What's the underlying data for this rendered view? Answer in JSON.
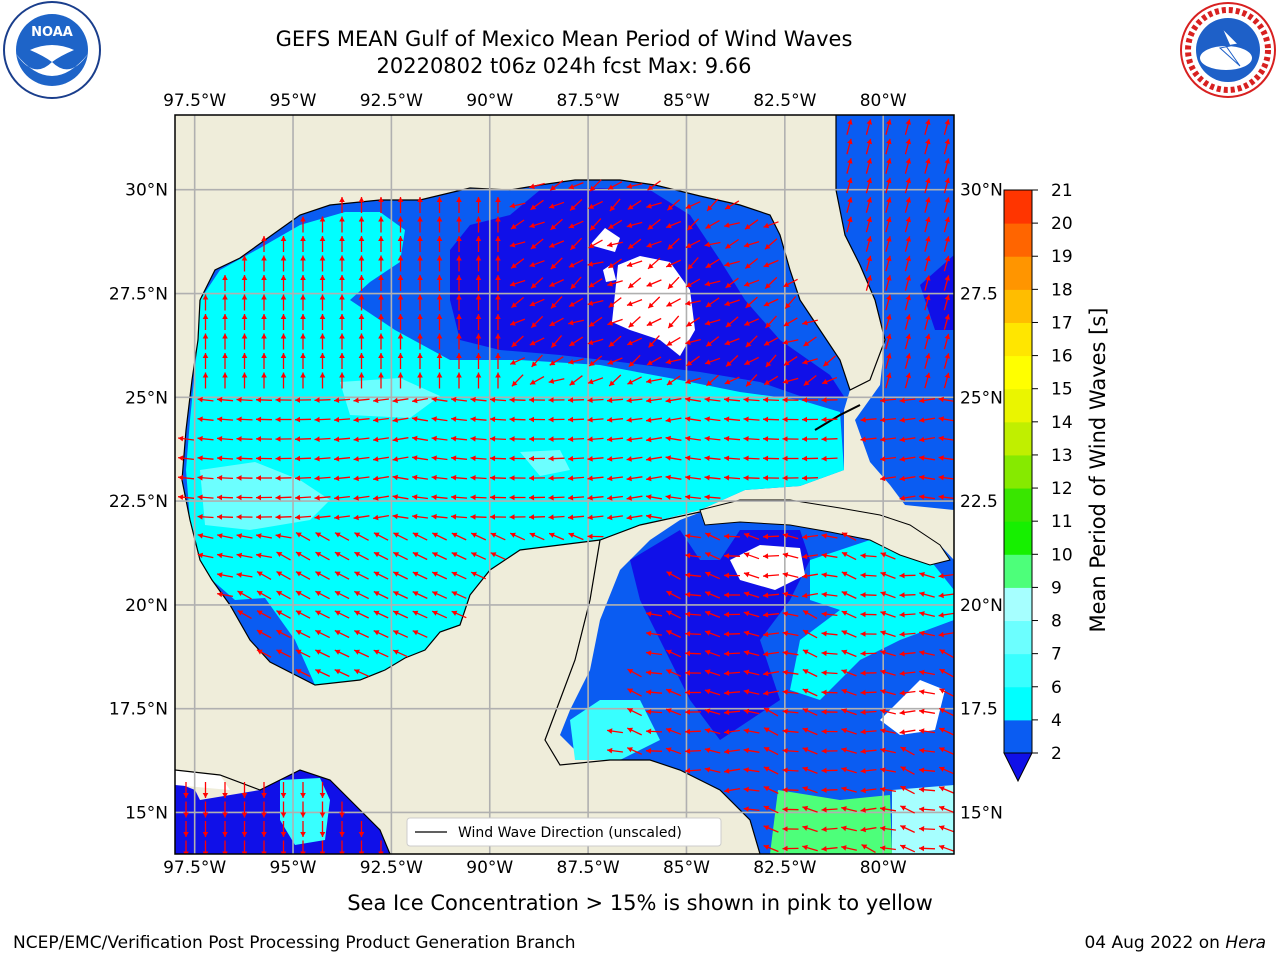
{
  "header": {
    "title_line1": "GEFS MEAN Gulf of Mexico Mean Period of Wind Waves",
    "title_line2": "20220802 t06z 024h fcst   Max: 9.66"
  },
  "logos": {
    "left": {
      "name": "noaa-logo",
      "text": "NOAA"
    },
    "right": {
      "name": "national-weather-service-logo",
      "text": "NATIONAL WEATHER SERVICE"
    }
  },
  "chart_data": {
    "type": "heatmap",
    "title": "GEFS MEAN Gulf of Mexico Mean Period of Wind Waves",
    "subtitle": "20220802 t06z 024h fcst   Max: 9.66",
    "x_ticks": [
      "97.5°W",
      "95°W",
      "92.5°W",
      "90°W",
      "87.5°W",
      "85°W",
      "82.5°W",
      "80°W"
    ],
    "x_tick_values": [
      -97.5,
      -95,
      -92.5,
      -90,
      -87.5,
      -85,
      -82.5,
      -80
    ],
    "y_ticks": [
      "30°N",
      "27.5°N",
      "25°N",
      "22.5°N",
      "20°N",
      "17.5°N",
      "15°N"
    ],
    "y_tick_values": [
      30,
      27.5,
      25,
      22.5,
      20,
      17.5,
      15
    ],
    "right_y_ticks": [
      "30°N",
      "27.5",
      "25°N",
      "22.5",
      "20°N",
      "17.5",
      "15°N"
    ],
    "xlim": [
      -98,
      -78.2
    ],
    "ylim": [
      14,
      31.8
    ],
    "grid": true,
    "max_value": 9.66,
    "colorbar": {
      "label": "Mean Period of Wind Waves [s]",
      "ticks": [
        2,
        4,
        6,
        7,
        8,
        9,
        10,
        11,
        12,
        13,
        14,
        15,
        16,
        17,
        18,
        19,
        20,
        21
      ],
      "levels": [
        2,
        4,
        6,
        7,
        8,
        9,
        10,
        11,
        12,
        13,
        14,
        15,
        16,
        17,
        18,
        19,
        20,
        21
      ],
      "colors": [
        "#0a5cf2",
        "#00ffff",
        "#38ffff",
        "#6cffff",
        "#a6ffff",
        "#4dff7a",
        "#16f000",
        "#39e600",
        "#86ea00",
        "#c0ef00",
        "#eaf500",
        "#ffff00",
        "#ffe600",
        "#ffbd00",
        "#ff9500",
        "#ff6500",
        "#ff3500",
        "#ff0000"
      ],
      "extend_min_color": "#1010e8"
    },
    "legend": {
      "label": "Wind Wave Direction (unscaled)",
      "placement": "lower-center"
    },
    "colors": {
      "land": "#efedda",
      "no_data": "#ffffff",
      "arrow": "#ff0000",
      "grid": "#b0b0b0"
    }
  },
  "footer": {
    "subtitle": "Sea Ice Concentration > 15% is shown in pink to yellow",
    "left": "NCEP/EMC/Verification Post Processing Product Generation Branch",
    "right_date": "04 Aug 2022 on ",
    "right_machine": "Hera"
  }
}
